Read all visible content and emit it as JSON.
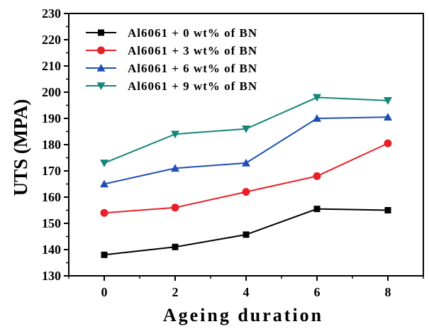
{
  "chart_data": {
    "type": "line",
    "title": "",
    "xlabel": "Ageing duration",
    "ylabel": "UTS (MPA)",
    "x": [
      0,
      2,
      4,
      6,
      8
    ],
    "xlim": [
      -1,
      9
    ],
    "ylim": [
      130,
      230
    ],
    "xticks": [
      "0",
      "2",
      "4",
      "6",
      "8"
    ],
    "yticks": [
      "130",
      "140",
      "150",
      "160",
      "170",
      "180",
      "190",
      "200",
      "210",
      "220",
      "230"
    ],
    "grid": false,
    "legend_position": "top-left",
    "series": [
      {
        "name": "Al6061 + 0 wt% of BN",
        "values": [
          138,
          141,
          145.7,
          155.5,
          155
        ],
        "color": "#000000",
        "marker": "square"
      },
      {
        "name": "Al6061 + 3 wt% of BN",
        "values": [
          154,
          156,
          162,
          168,
          180.5
        ],
        "color": "#e8202a",
        "marker": "circle"
      },
      {
        "name": "Al6061 + 6 wt% of BN",
        "values": [
          165,
          171,
          173,
          190,
          190.5
        ],
        "color": "#1f4fb4",
        "marker": "triangle-up"
      },
      {
        "name": "Al6061 + 9 wt% of BN",
        "values": [
          173,
          184,
          186,
          198,
          196.8
        ],
        "color": "#14857a",
        "marker": "triangle-down"
      }
    ]
  }
}
